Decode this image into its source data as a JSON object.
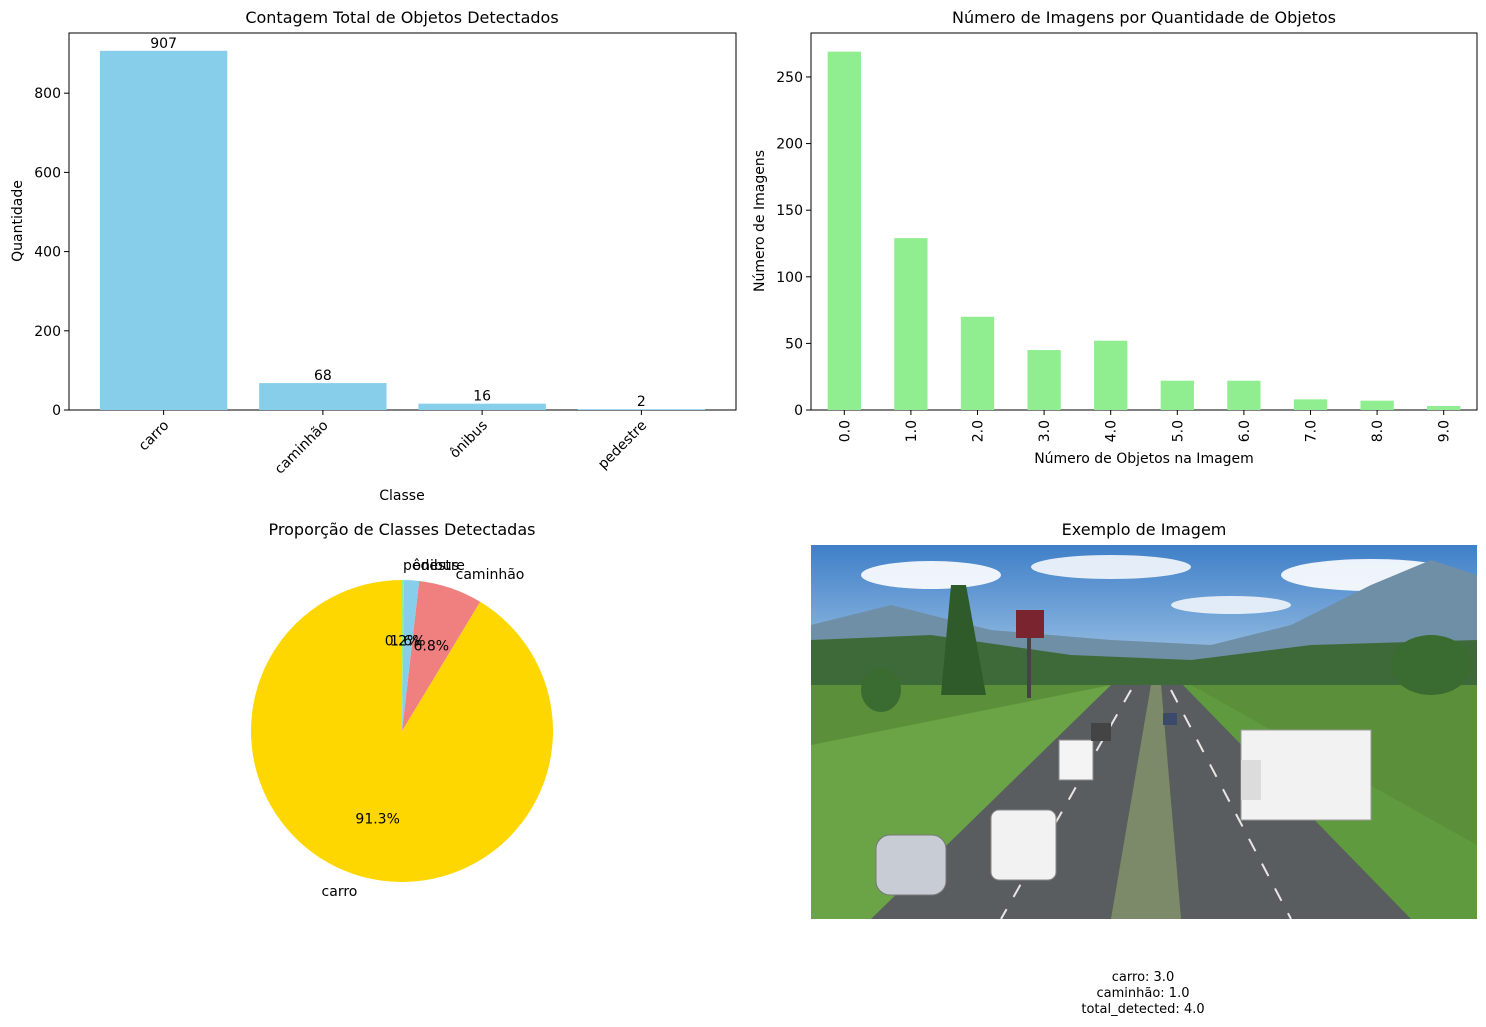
{
  "chart_data": [
    {
      "type": "bar",
      "title": "Contagem Total de Objetos Detectados",
      "xlabel": "Classe",
      "ylabel": "Quantidade",
      "categories": [
        "carro",
        "caminhão",
        "ônibus",
        "pedestre"
      ],
      "values": [
        907,
        68,
        16,
        2
      ],
      "data_labels": [
        "907",
        "68",
        "16",
        "2"
      ],
      "ylim": [
        0,
        952
      ],
      "yticks": [
        0,
        200,
        400,
        600,
        800
      ],
      "xtick_rotation": 45,
      "grid": false,
      "color": "#87ceeb"
    },
    {
      "type": "bar",
      "title": "Número de Imagens por Quantidade de Objetos",
      "xlabel": "Número de Objetos na Imagem",
      "ylabel": "Número de Imagens",
      "categories": [
        "0.0",
        "1.0",
        "2.0",
        "3.0",
        "4.0",
        "5.0",
        "6.0",
        "7.0",
        "8.0",
        "9.0"
      ],
      "values": [
        269,
        129,
        70,
        45,
        52,
        22,
        22,
        8,
        7,
        3
      ],
      "ylim": [
        0,
        283
      ],
      "yticks": [
        0,
        50,
        100,
        150,
        200,
        250
      ],
      "xtick_rotation": 90,
      "grid": false,
      "color": "#90ee90"
    },
    {
      "type": "pie",
      "title": "Proporção de Classes Detectadas",
      "categories": [
        "carro",
        "caminhão",
        "ônibus",
        "pedestre"
      ],
      "values": [
        907,
        68,
        16,
        2
      ],
      "autopct_labels": [
        "91.3%",
        "6.8%",
        "1.6%",
        "0.2%"
      ],
      "colors": [
        "#ffd700",
        "#f08080",
        "#87ceeb",
        "#90ee90"
      ],
      "start_angle": 90,
      "direction": "counterclockwise"
    }
  ],
  "image_panel": {
    "title": "Exemplo de Imagem",
    "caption_lines": [
      "carro: 3.0",
      "caminhão: 1.0",
      "total_detected: 4.0"
    ]
  }
}
